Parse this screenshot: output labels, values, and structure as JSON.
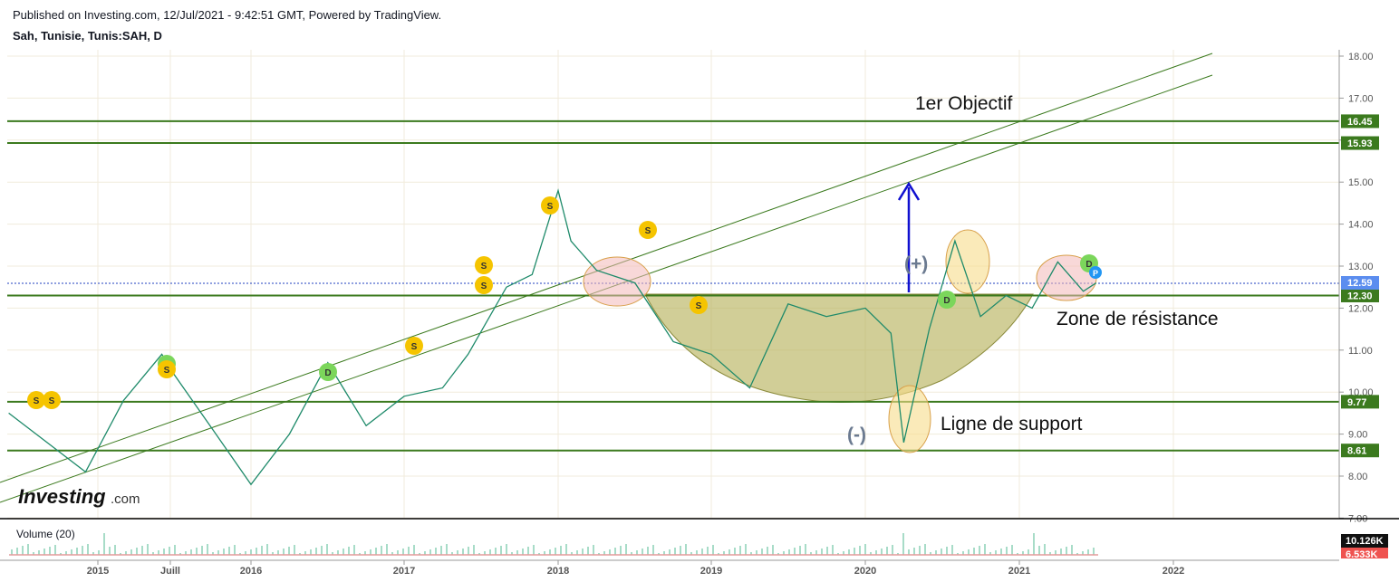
{
  "header": {
    "published": "Published on Investing.com, 12/Jul/2021 - 9:42:51 GMT, Powered by TradingView.",
    "symbol": "Sah, Tunisie, Tunis:SAH, D"
  },
  "chart_data": {
    "type": "line",
    "title": "Sah, Tunisie, Tunis:SAH, D",
    "x_ticks": [
      "2015",
      "Juill",
      "2016",
      "2017",
      "2018",
      "2019",
      "2020",
      "2021",
      "2022"
    ],
    "y_ticks": [
      "18.00",
      "17.00",
      "16.00",
      "15.00",
      "14.00",
      "13.00",
      "12.00",
      "11.00",
      "10.00",
      "9.00",
      "8.00",
      "7.00"
    ],
    "ylim": [
      7,
      18.1
    ],
    "current_price": "12.59",
    "levels": [
      {
        "value": 16.45,
        "label": "16.45"
      },
      {
        "value": 15.93,
        "label": "15.93"
      },
      {
        "value": 12.3,
        "label": "12.30"
      },
      {
        "value": 9.77,
        "label": "9.77"
      },
      {
        "value": 8.61,
        "label": "8.61"
      }
    ],
    "series": [
      {
        "x": [
          "2014-06",
          "2014-09",
          "2014-12",
          "2015-03",
          "2015-06",
          "2015-07",
          "2015-10",
          "2016-01",
          "2016-04",
          "2016-07",
          "2016-10",
          "2017-01",
          "2017-04",
          "2017-06",
          "2017-09",
          "2017-11",
          "2018-01",
          "2018-02",
          "2018-04",
          "2018-07",
          "2018-10",
          "2019-01",
          "2019-04",
          "2019-07",
          "2019-10",
          "2020-01",
          "2020-03",
          "2020-04",
          "2020-06",
          "2020-08",
          "2020-10",
          "2020-12",
          "2021-02",
          "2021-04",
          "2021-06",
          "2021-07"
        ],
        "values": [
          9.5,
          8.8,
          8.1,
          9.8,
          10.9,
          10.4,
          9.1,
          7.8,
          9.0,
          10.7,
          9.2,
          9.9,
          10.1,
          10.9,
          12.5,
          12.8,
          14.8,
          13.6,
          12.9,
          12.6,
          11.2,
          10.9,
          10.1,
          12.1,
          11.8,
          12.0,
          11.4,
          8.8,
          11.5,
          13.6,
          11.8,
          12.3,
          12.0,
          13.1,
          12.4,
          12.6
        ]
      }
    ],
    "volume": {
      "label": "Volume (20)",
      "values": [
        "10.126K",
        "6.533K"
      ]
    },
    "annotations": {
      "objective": "1er Objectif",
      "resistance": "Zone de résistance",
      "support": "Ligne de support",
      "plus": "(+)",
      "minus": "(-)"
    },
    "markers": [
      "S",
      "D",
      "P"
    ],
    "grid": true,
    "colors": {
      "level": "#3b7a1e",
      "trend": "#3b7a1e",
      "arrow": "#1010d0",
      "price_label": "#5b8def",
      "volume_label_top": "#111111",
      "volume_label_bottom": "#ef5350",
      "marker_s": "#f5c400",
      "marker_d": "#7bd65b",
      "marker_p": "#2196f3",
      "cup_fill": "#b8b460",
      "ellipse_red": "#f3b8b8",
      "ellipse_yellow": "#f6dc8a"
    }
  },
  "watermark": {
    "brand": "Investing",
    "suffix": ".com"
  }
}
